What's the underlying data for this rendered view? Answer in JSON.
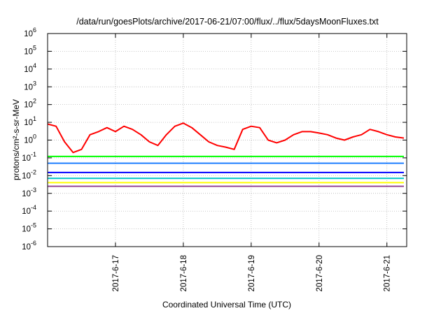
{
  "chart_data": {
    "type": "line",
    "title": "/data/run/goesPlots/archive/2017-06-21/07:00/flux/../flux/5daysMoonFluxes.txt",
    "xlabel": "Coordinated Universal Time (UTC)",
    "ylabel": "protons/cm²-s-sr-MeV",
    "y_scale": "log",
    "ylim": [
      1e-06,
      1000000.0
    ],
    "y_tick_exponents": [
      -6,
      -5,
      -4,
      -3,
      -2,
      -1,
      0,
      1,
      2,
      3,
      4,
      5,
      6
    ],
    "xlim": [
      "2017-06-16T00:00",
      "2017-06-21T07:00"
    ],
    "x_ticks": [
      "2017-6-17",
      "2017-6-18",
      "2017-6-19",
      "2017-6-20",
      "2017-6-21"
    ],
    "x_tick_dates": [
      "2017-06-17",
      "2017-06-18",
      "2017-06-19",
      "2017-06-20",
      "2017-06-21"
    ],
    "grid": true,
    "colors": [
      "#ff0000",
      "#00ff00",
      "#2080ff",
      "#0000ff",
      "#00c8c8",
      "#ffff00",
      "#964b96"
    ],
    "series": [
      {
        "color": "#ff0000",
        "x": [
          "2017-06-16T00:00",
          "2017-06-16T03:00",
          "2017-06-16T06:00",
          "2017-06-16T09:00",
          "2017-06-16T12:00",
          "2017-06-16T15:00",
          "2017-06-16T18:00",
          "2017-06-16T21:00",
          "2017-06-17T00:00",
          "2017-06-17T03:00",
          "2017-06-17T06:00",
          "2017-06-17T09:00",
          "2017-06-17T12:00",
          "2017-06-17T15:00",
          "2017-06-17T18:00",
          "2017-06-17T21:00",
          "2017-06-18T00:00",
          "2017-06-18T03:00",
          "2017-06-18T06:00",
          "2017-06-18T09:00",
          "2017-06-18T12:00",
          "2017-06-18T15:00",
          "2017-06-18T18:00",
          "2017-06-18T21:00",
          "2017-06-19T00:00",
          "2017-06-19T03:00",
          "2017-06-19T06:00",
          "2017-06-19T09:00",
          "2017-06-19T12:00",
          "2017-06-19T15:00",
          "2017-06-19T18:00",
          "2017-06-19T21:00",
          "2017-06-20T00:00",
          "2017-06-20T03:00",
          "2017-06-20T06:00",
          "2017-06-20T09:00",
          "2017-06-20T12:00",
          "2017-06-20T15:00",
          "2017-06-20T18:00",
          "2017-06-20T21:00",
          "2017-06-21T00:00",
          "2017-06-21T03:00",
          "2017-06-21T06:00"
        ],
        "values": [
          8,
          6,
          0.8,
          0.2,
          0.3,
          2,
          3,
          5,
          3,
          6,
          4,
          2,
          0.8,
          0.5,
          2,
          6,
          9,
          5,
          2,
          0.8,
          0.5,
          0.4,
          0.3,
          4,
          6,
          5,
          1,
          0.7,
          1,
          2,
          3,
          3,
          2.5,
          2,
          1.3,
          1,
          1.5,
          2,
          4,
          3,
          2,
          1.5,
          1.3
        ]
      },
      {
        "color": "#00ff00",
        "x": [
          "2017-06-16T00:00",
          "2017-06-17T00:00",
          "2017-06-18T00:00",
          "2017-06-19T00:00",
          "2017-06-20T00:00",
          "2017-06-21T00:00",
          "2017-06-21T06:00"
        ],
        "values": [
          0.12,
          0.12,
          0.12,
          0.12,
          0.12,
          0.12,
          0.12
        ]
      },
      {
        "color": "#2080ff",
        "x": [
          "2017-06-16T00:00",
          "2017-06-17T00:00",
          "2017-06-18T00:00",
          "2017-06-19T00:00",
          "2017-06-20T00:00",
          "2017-06-21T00:00",
          "2017-06-21T06:00"
        ],
        "values": [
          0.05,
          0.05,
          0.05,
          0.05,
          0.05,
          0.05,
          0.05
        ]
      },
      {
        "color": "#0000ff",
        "x": [
          "2017-06-16T00:00",
          "2017-06-17T00:00",
          "2017-06-18T00:00",
          "2017-06-19T00:00",
          "2017-06-20T00:00",
          "2017-06-21T00:00",
          "2017-06-21T06:00"
        ],
        "values": [
          0.015,
          0.015,
          0.015,
          0.015,
          0.015,
          0.015,
          0.015
        ]
      },
      {
        "color": "#00c8c8",
        "x": [
          "2017-06-16T00:00",
          "2017-06-17T00:00",
          "2017-06-18T00:00",
          "2017-06-19T00:00",
          "2017-06-20T00:00",
          "2017-06-21T00:00",
          "2017-06-21T06:00"
        ],
        "values": [
          0.007,
          0.007,
          0.007,
          0.007,
          0.007,
          0.007,
          0.007
        ]
      },
      {
        "color": "#ffff00",
        "x": [
          "2017-06-16T00:00",
          "2017-06-17T00:00",
          "2017-06-18T00:00",
          "2017-06-19T00:00",
          "2017-06-20T00:00",
          "2017-06-21T00:00",
          "2017-06-21T06:00"
        ],
        "values": [
          0.004,
          0.004,
          0.004,
          0.004,
          0.004,
          0.004,
          0.004
        ]
      },
      {
        "color": "#964b96",
        "x": [
          "2017-06-16T00:00",
          "2017-06-17T00:00",
          "2017-06-18T00:00",
          "2017-06-19T00:00",
          "2017-06-20T00:00",
          "2017-06-21T00:00",
          "2017-06-21T06:00"
        ],
        "values": [
          0.0025,
          0.0025,
          0.0025,
          0.0025,
          0.0025,
          0.0025,
          0.0025
        ]
      }
    ]
  }
}
